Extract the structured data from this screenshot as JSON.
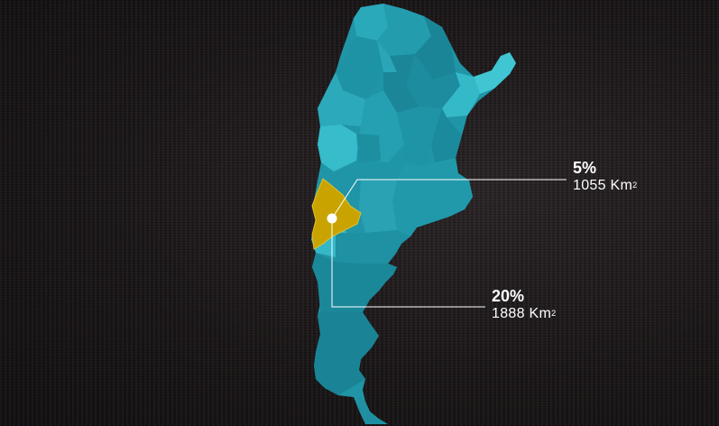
{
  "map": {
    "colors": {
      "province_dark": "#1b8a9c",
      "province_mid": "#24a6b8",
      "province_light": "#35c0cf",
      "highlight": "#c9a400",
      "marker": "#ffffff",
      "leader_line": "#ffffff",
      "background": "#1a1617"
    },
    "highlighted_region": "yellow-region",
    "callouts": [
      {
        "percent": "5%",
        "area_value": "1055 Km",
        "area_unit_sup": "2"
      },
      {
        "percent": "20%",
        "area_value": "1888 Km",
        "area_unit_sup": "2"
      }
    ]
  }
}
